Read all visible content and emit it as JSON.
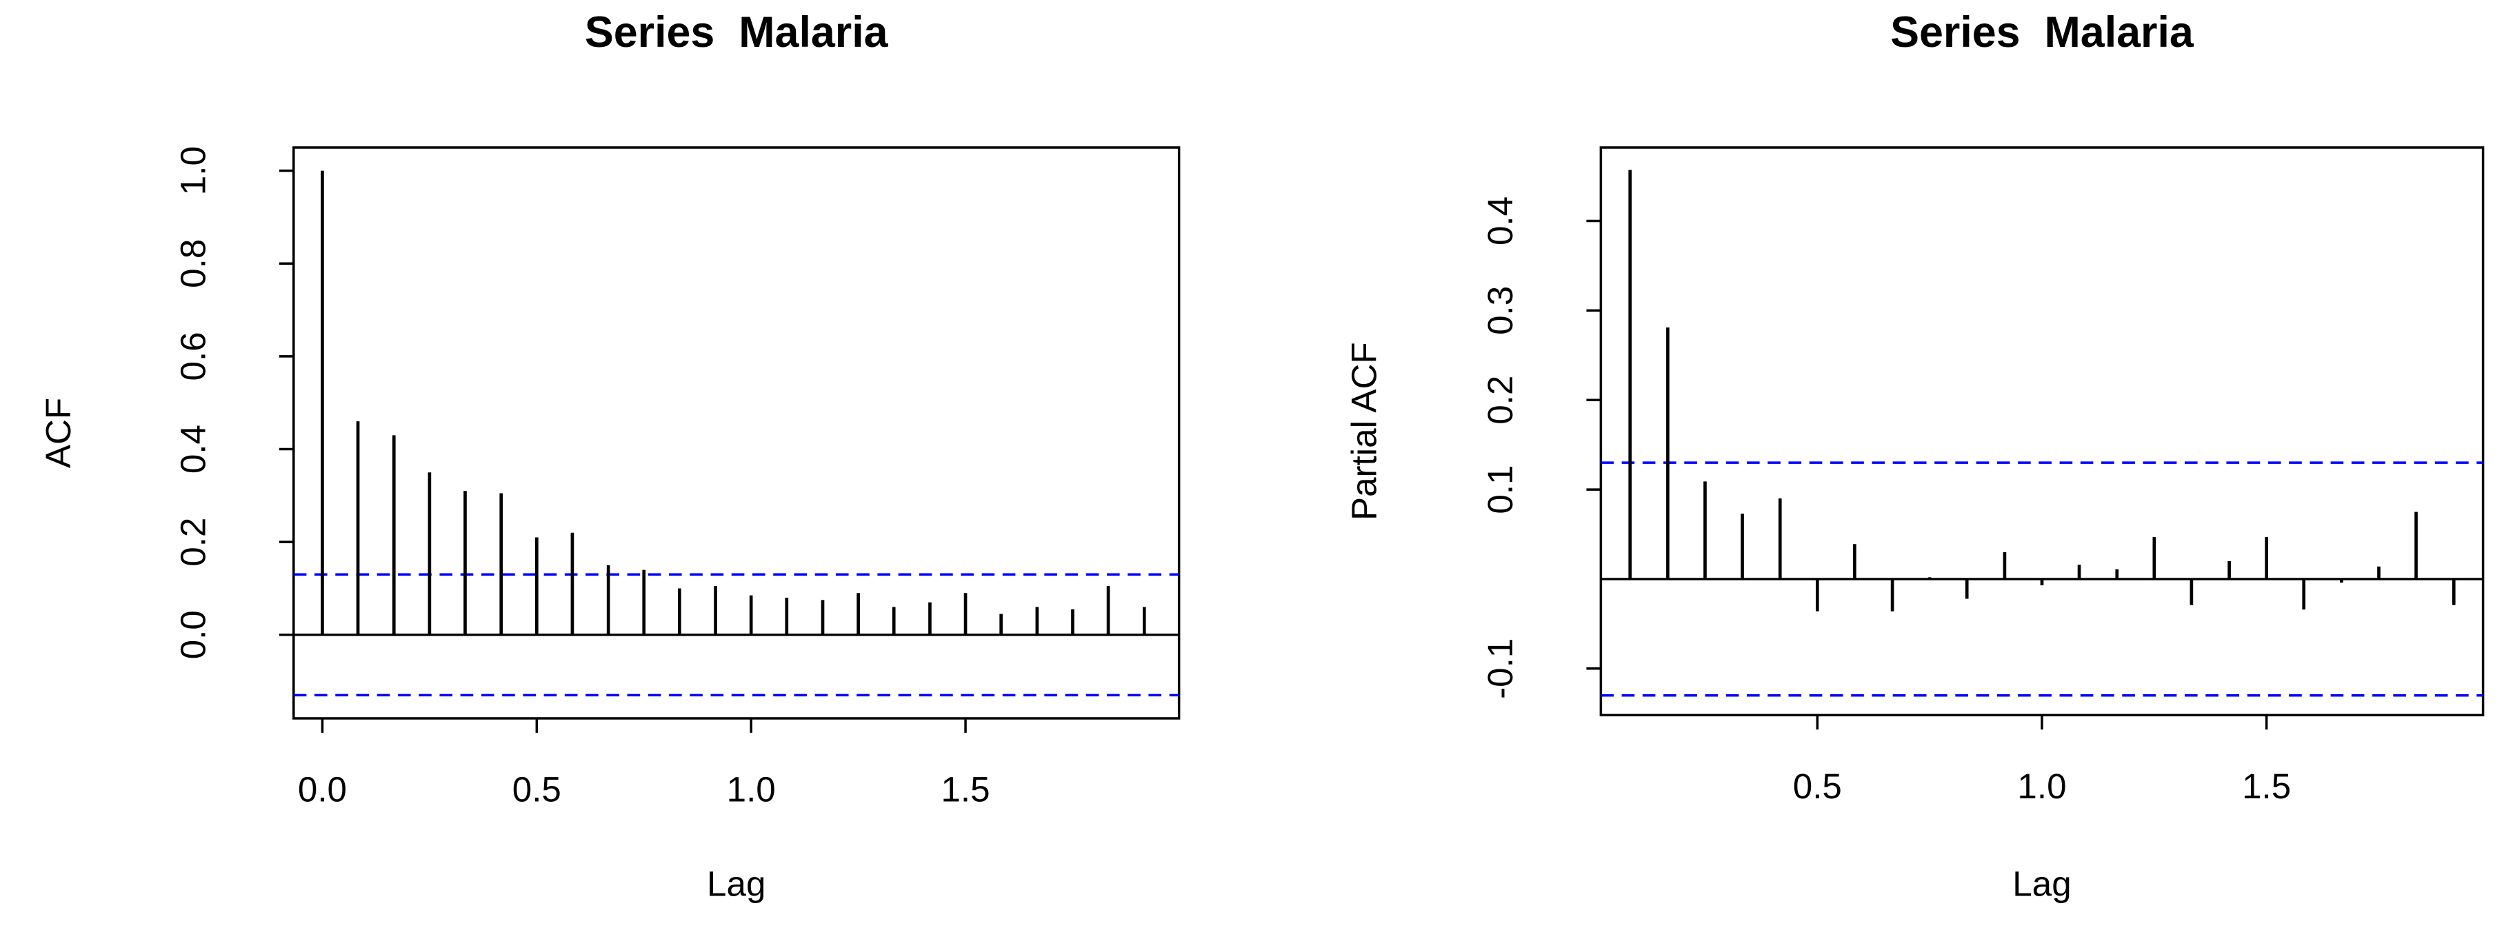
{
  "chart_data": [
    {
      "type": "acf",
      "title": "Series  Malaria",
      "x_label": "Lag",
      "y_label": "ACF",
      "x": [
        0,
        0.083,
        0.167,
        0.25,
        0.333,
        0.417,
        0.5,
        0.583,
        0.667,
        0.75,
        0.833,
        0.917,
        1,
        1.083,
        1.167,
        1.25,
        1.333,
        1.417,
        1.5,
        1.583,
        1.667,
        1.75,
        1.833,
        1.917
      ],
      "values": [
        1.0,
        0.46,
        0.43,
        0.35,
        0.31,
        0.305,
        0.21,
        0.22,
        0.15,
        0.14,
        0.1,
        0.105,
        0.085,
        0.08,
        0.075,
        0.09,
        0.06,
        0.07,
        0.09,
        0.045,
        0.06,
        0.055,
        0.105,
        0.06
      ],
      "color": "#000000",
      "xlim": [
        -0.067,
        1.998
      ],
      "xticks": [
        {
          "value": 0,
          "label": "0.0"
        },
        0.5,
        {
          "value": 1,
          "label": "1.0"
        },
        1.5
      ],
      "ylim": [
        -0.18,
        1.05
      ],
      "yticks": [
        {
          "value": 0,
          "label": "0.0"
        },
        0.2,
        0.4,
        0.6,
        0.8,
        {
          "value": 1,
          "label": "1.0"
        }
      ],
      "hlines": [
        {
          "value": 0.13,
          "color": "#0000ff"
        },
        {
          "value": -0.13,
          "color": "#0000ff"
        }
      ]
    },
    {
      "type": "acf",
      "title": "Series  Malaria",
      "x_label": "Lag",
      "y_label": "Partial ACF",
      "x": [
        0.083,
        0.167,
        0.25,
        0.333,
        0.417,
        0.5,
        0.583,
        0.667,
        0.75,
        0.833,
        0.917,
        1,
        1.083,
        1.167,
        1.25,
        1.333,
        1.417,
        1.5,
        1.583,
        1.667,
        1.75,
        1.833,
        1.917
      ],
      "values": [
        0.457,
        0.281,
        0.109,
        0.073,
        0.09,
        -0.036,
        0.039,
        -0.036,
        0.002,
        -0.022,
        0.03,
        -0.007,
        0.016,
        0.011,
        0.047,
        -0.029,
        0.02,
        0.047,
        -0.034,
        -0.004,
        0.014,
        0.075,
        -0.029
      ],
      "color": "#000000",
      "xlim": [
        0.018,
        1.982
      ],
      "xticks": [
        0.5,
        {
          "value": 1,
          "label": "1.0"
        },
        1.5
      ],
      "ylim": [
        -0.152,
        0.482
      ],
      "yticks": [
        -0.1,
        0.1,
        0.2,
        0.3,
        0.4
      ],
      "hlines": [
        {
          "value": 0.13,
          "color": "#0000ff"
        },
        {
          "value": -0.13,
          "color": "#0000ff"
        }
      ]
    }
  ]
}
